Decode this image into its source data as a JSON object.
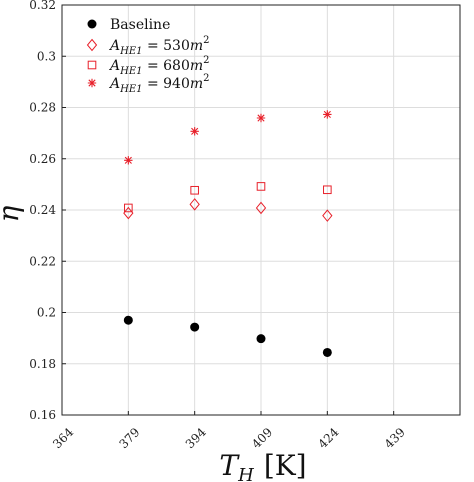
{
  "chart_data": {
    "type": "scatter",
    "xlabel": "T_H [K]",
    "xlabel_parts": {
      "main": "T",
      "sub": "H",
      "unit": "[K]"
    },
    "ylabel": "η",
    "xlim": [
      364,
      454
    ],
    "ylim": [
      0.16,
      0.32
    ],
    "x_ticks": [
      "364",
      "379",
      "394",
      "409",
      "424",
      "439"
    ],
    "y_ticks": [
      "0.16",
      "0.18",
      "0.2",
      "0.22",
      "0.24",
      "0.26",
      "0.28",
      "0.3",
      "0.32"
    ],
    "grid": true,
    "legend_position": "top-left",
    "series": [
      {
        "name": "Baseline",
        "legend": {
          "main": "Baseline"
        },
        "marker": "circle-filled",
        "color": "#000000",
        "x": [
          379,
          394,
          409,
          424
        ],
        "y": [
          0.197,
          0.1943,
          0.1898,
          0.1844
        ]
      },
      {
        "name": "A_HE1 = 530m^2",
        "legend": {
          "sym": "A",
          "sub": "HE1",
          "rest": " = 530",
          "unit": "m",
          "sup": "2"
        },
        "marker": "diamond-open",
        "color": "#e8202a",
        "x": [
          379,
          394,
          409,
          424
        ],
        "y": [
          0.2388,
          0.2422,
          0.2408,
          0.2378
        ]
      },
      {
        "name": "A_HE1 = 680m^2",
        "legend": {
          "sym": "A",
          "sub": "HE1",
          "rest": " = 680",
          "unit": "m",
          "sup": "2"
        },
        "marker": "square-open",
        "color": "#e8202a",
        "x": [
          379,
          394,
          409,
          424
        ],
        "y": [
          0.2408,
          0.2477,
          0.2492,
          0.2479
        ]
      },
      {
        "name": "A_HE1 = 940m^2",
        "legend": {
          "sym": "A",
          "sub": "HE1",
          "rest": " = 940",
          "unit": "m",
          "sup": "2"
        },
        "marker": "asterisk",
        "color": "#e8202a",
        "x": [
          379,
          394,
          409,
          424
        ],
        "y": [
          0.2594,
          0.2707,
          0.2759,
          0.2773
        ]
      }
    ]
  }
}
